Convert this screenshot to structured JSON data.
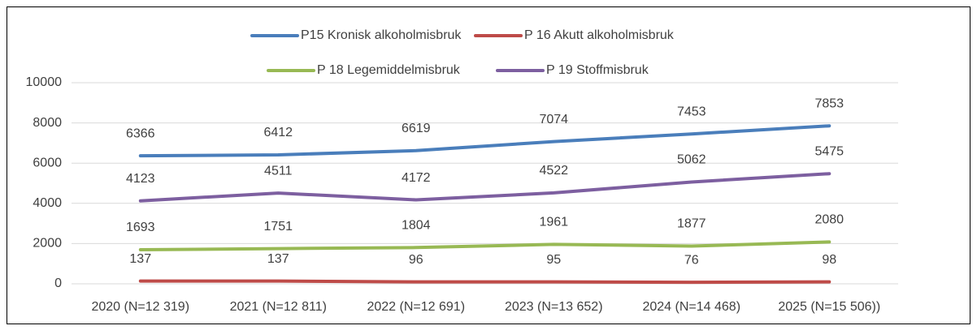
{
  "chart_data": {
    "type": "line",
    "categories": [
      "2020 (N=12 319)",
      "2021 (N=12 811)",
      "2022 (N=12 691)",
      "2023 (N=13 652)",
      "2024 (N=14 468)",
      "2025 (N=15 506))"
    ],
    "series": [
      {
        "name": "P15 Kronisk alkoholmisbruk",
        "color": "#4a7ebb",
        "values": [
          6366,
          6412,
          6619,
          7074,
          7453,
          7853
        ]
      },
      {
        "name": "P 16 Akutt alkoholmisbruk",
        "color": "#be4b48",
        "values": [
          137,
          137,
          96,
          95,
          76,
          98
        ]
      },
      {
        "name": "P 18 Legemiddelmisbruk",
        "color": "#98b954",
        "values": [
          1693,
          1751,
          1804,
          1961,
          1877,
          2080
        ]
      },
      {
        "name": "P 19 Stoffmisbruk",
        "color": "#7d5fa0",
        "values": [
          4123,
          4511,
          4172,
          4522,
          5062,
          5475
        ]
      }
    ],
    "ylim": [
      0,
      10000
    ],
    "yticks": [
      0,
      2000,
      4000,
      6000,
      8000,
      10000
    ],
    "grid": true
  }
}
